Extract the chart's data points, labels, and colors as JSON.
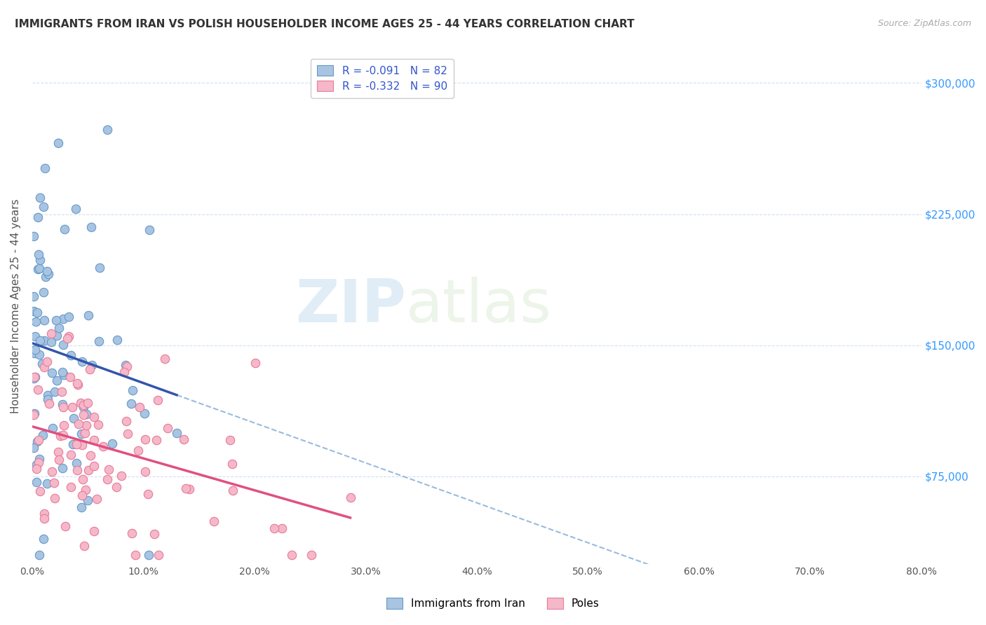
{
  "title": "IMMIGRANTS FROM IRAN VS POLISH HOUSEHOLDER INCOME AGES 25 - 44 YEARS CORRELATION CHART",
  "source": "Source: ZipAtlas.com",
  "ylabel": "Householder Income Ages 25 - 44 years",
  "yticks": [
    75000,
    150000,
    225000,
    300000
  ],
  "ytick_labels": [
    "$75,000",
    "$150,000",
    "$225,000",
    "$300,000"
  ],
  "xmin": 0.0,
  "xmax": 80.0,
  "ymin": 25000,
  "ymax": 320000,
  "iran_R": -0.091,
  "iran_N": 82,
  "poles_R": -0.332,
  "poles_N": 90,
  "iran_color": "#a8c4e0",
  "iran_edge_color": "#6699cc",
  "poles_color": "#f4b8c8",
  "poles_edge_color": "#e87a9a",
  "iran_line_color": "#3355aa",
  "poles_line_color": "#e05080",
  "dashed_line_color": "#99bbdd",
  "legend_label_iran": "Immigrants from Iran",
  "legend_label_poles": "Poles",
  "watermark_zip": "ZIP",
  "watermark_atlas": "atlas",
  "legend_text_color": "#3355cc"
}
